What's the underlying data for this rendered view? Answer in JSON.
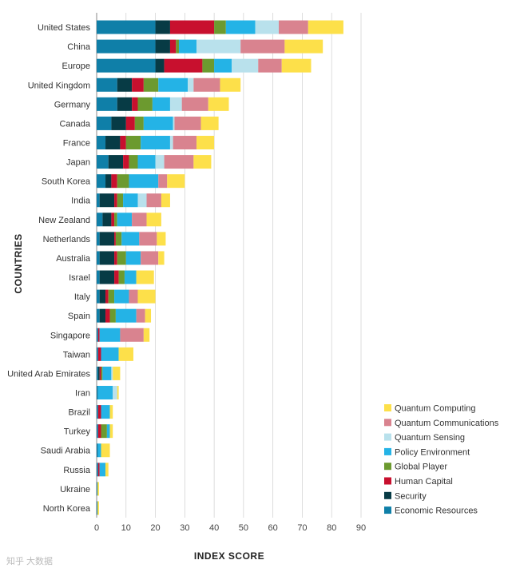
{
  "chart_data": {
    "type": "bar",
    "orientation": "horizontal",
    "stacked": true,
    "xlabel": "INDEX SCORE",
    "ylabel": "COUNTRIES",
    "xlim": [
      0,
      90
    ],
    "xticks": [
      0,
      10,
      20,
      30,
      40,
      50,
      60,
      70,
      80,
      90
    ],
    "grid": true,
    "legend_position": "bottom-right",
    "categories": [
      "United States",
      "China",
      "Europe",
      "United Kingdom",
      "Germany",
      "Canada",
      "France",
      "Japan",
      "South Korea",
      "India",
      "New Zealand",
      "Netherlands",
      "Australia",
      "Israel",
      "Italy",
      "Spain",
      "Singapore",
      "Taiwan",
      "United Arab Emirates",
      "Iran",
      "Brazil",
      "Turkey",
      "Saudi Arabia",
      "Russia",
      "Ukraine",
      "North Korea"
    ],
    "series": [
      {
        "name": "Economic Resources",
        "color": "#0f7fa8",
        "values": [
          20,
          20,
          20,
          7,
          7,
          5,
          3,
          4,
          3,
          1,
          2,
          1,
          1,
          1,
          1,
          1,
          0.5,
          0.5,
          0.5,
          0.5,
          0.5,
          0.5,
          0.5,
          0.5,
          0.3,
          0.3
        ]
      },
      {
        "name": "Security",
        "color": "#073b45",
        "values": [
          5,
          5,
          3,
          5,
          5,
          5,
          5,
          5,
          2,
          5,
          3,
          5,
          5,
          5,
          2,
          2,
          0,
          0,
          0.5,
          0,
          0,
          0,
          0,
          0,
          0,
          0
        ]
      },
      {
        "name": "Human Capital",
        "color": "#c8102e",
        "values": [
          15,
          2,
          13,
          4,
          2,
          3,
          2,
          2,
          2,
          1,
          1,
          0.5,
          1,
          1.5,
          1,
          1.5,
          0.5,
          1,
          0.5,
          0,
          1,
          1,
          0,
          0.5,
          0,
          0
        ]
      },
      {
        "name": "Global Player",
        "color": "#6c9a2f",
        "values": [
          4,
          1,
          4,
          5,
          5,
          3,
          5,
          3,
          4,
          2,
          1,
          2,
          3,
          2,
          2,
          2,
          0,
          0,
          0.5,
          0,
          0,
          2,
          0,
          0,
          0,
          0
        ]
      },
      {
        "name": "Policy Environment",
        "color": "#24b3e6",
        "values": [
          10,
          6,
          6,
          10,
          6,
          10,
          10,
          6,
          10,
          5,
          5,
          6,
          5,
          4,
          5,
          7,
          7,
          6,
          3,
          5,
          3,
          1,
          1,
          2,
          0,
          0
        ]
      },
      {
        "name": "Quantum Sensing",
        "color": "#b9e1ec",
        "values": [
          8,
          15,
          9,
          2,
          4,
          0.5,
          1,
          3,
          0,
          3,
          0,
          0,
          0,
          0,
          0,
          0,
          0,
          0,
          0.5,
          1.5,
          0,
          0,
          0,
          0,
          0,
          0
        ]
      },
      {
        "name": "Quantum Communications",
        "color": "#d9838f",
        "values": [
          10,
          15,
          8,
          9,
          9,
          9,
          8,
          10,
          3,
          5,
          5,
          6,
          6,
          0,
          3,
          3,
          8,
          0,
          0,
          0,
          0,
          0,
          0,
          0,
          0,
          0
        ]
      },
      {
        "name": "Quantum Computing",
        "color": "#fde04a",
        "values": [
          12,
          13,
          10,
          7,
          7,
          6,
          6,
          6,
          6,
          3,
          5,
          3,
          2,
          6,
          6,
          2,
          2,
          5,
          2.5,
          0.5,
          1,
          1,
          3,
          1,
          0.5,
          0.5
        ]
      }
    ],
    "legend_order": [
      "Quantum Computing",
      "Quantum Communications",
      "Quantum Sensing",
      "Policy Environment",
      "Global Player",
      "Human Capital",
      "Security",
      "Economic Resources"
    ]
  }
}
